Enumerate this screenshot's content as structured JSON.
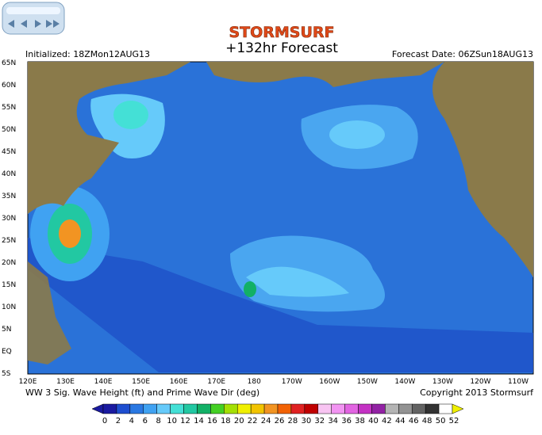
{
  "header": {
    "logo": "STORMSURF",
    "title": "+132hr Forecast",
    "initialized": "Initialized: 18ZMon12AUG13",
    "forecast_date": "Forecast Date: 06ZSun18AUG13"
  },
  "map": {
    "lat_labels": [
      "65N",
      "60N",
      "55N",
      "50N",
      "45N",
      "40N",
      "35N",
      "30N",
      "25N",
      "20N",
      "15N",
      "10N",
      "5N",
      "EQ",
      "5S"
    ],
    "lon_labels": [
      "120E",
      "130E",
      "140E",
      "150E",
      "160E",
      "170E",
      "180",
      "170W",
      "160W",
      "150W",
      "140W",
      "130W",
      "120W",
      "110W"
    ]
  },
  "footer": {
    "caption": "WW 3 Sig. Wave Height (ft) and Prime Wave Dir (deg)",
    "copyright": "Copyright 2013 Stormsurf"
  },
  "colorbar": {
    "labels": [
      0,
      2,
      4,
      6,
      8,
      10,
      12,
      14,
      16,
      18,
      20,
      22,
      24,
      26,
      28,
      30,
      32,
      34,
      36,
      38,
      40,
      42,
      44,
      46,
      48,
      50,
      52
    ],
    "colors": [
      "#1a1aa0",
      "#1e4ed0",
      "#2a78e2",
      "#40a2f2",
      "#66cafa",
      "#44e0d6",
      "#22c8a2",
      "#12b066",
      "#44d024",
      "#a4e004",
      "#f0f000",
      "#f2c400",
      "#f29422",
      "#f26204",
      "#e02222",
      "#c00000",
      "#f8c4f2",
      "#f294f2",
      "#e264e2",
      "#c432c4",
      "#9222a4",
      "#b4b4b4",
      "#929292",
      "#626262",
      "#323232",
      "#ffffff"
    ]
  }
}
